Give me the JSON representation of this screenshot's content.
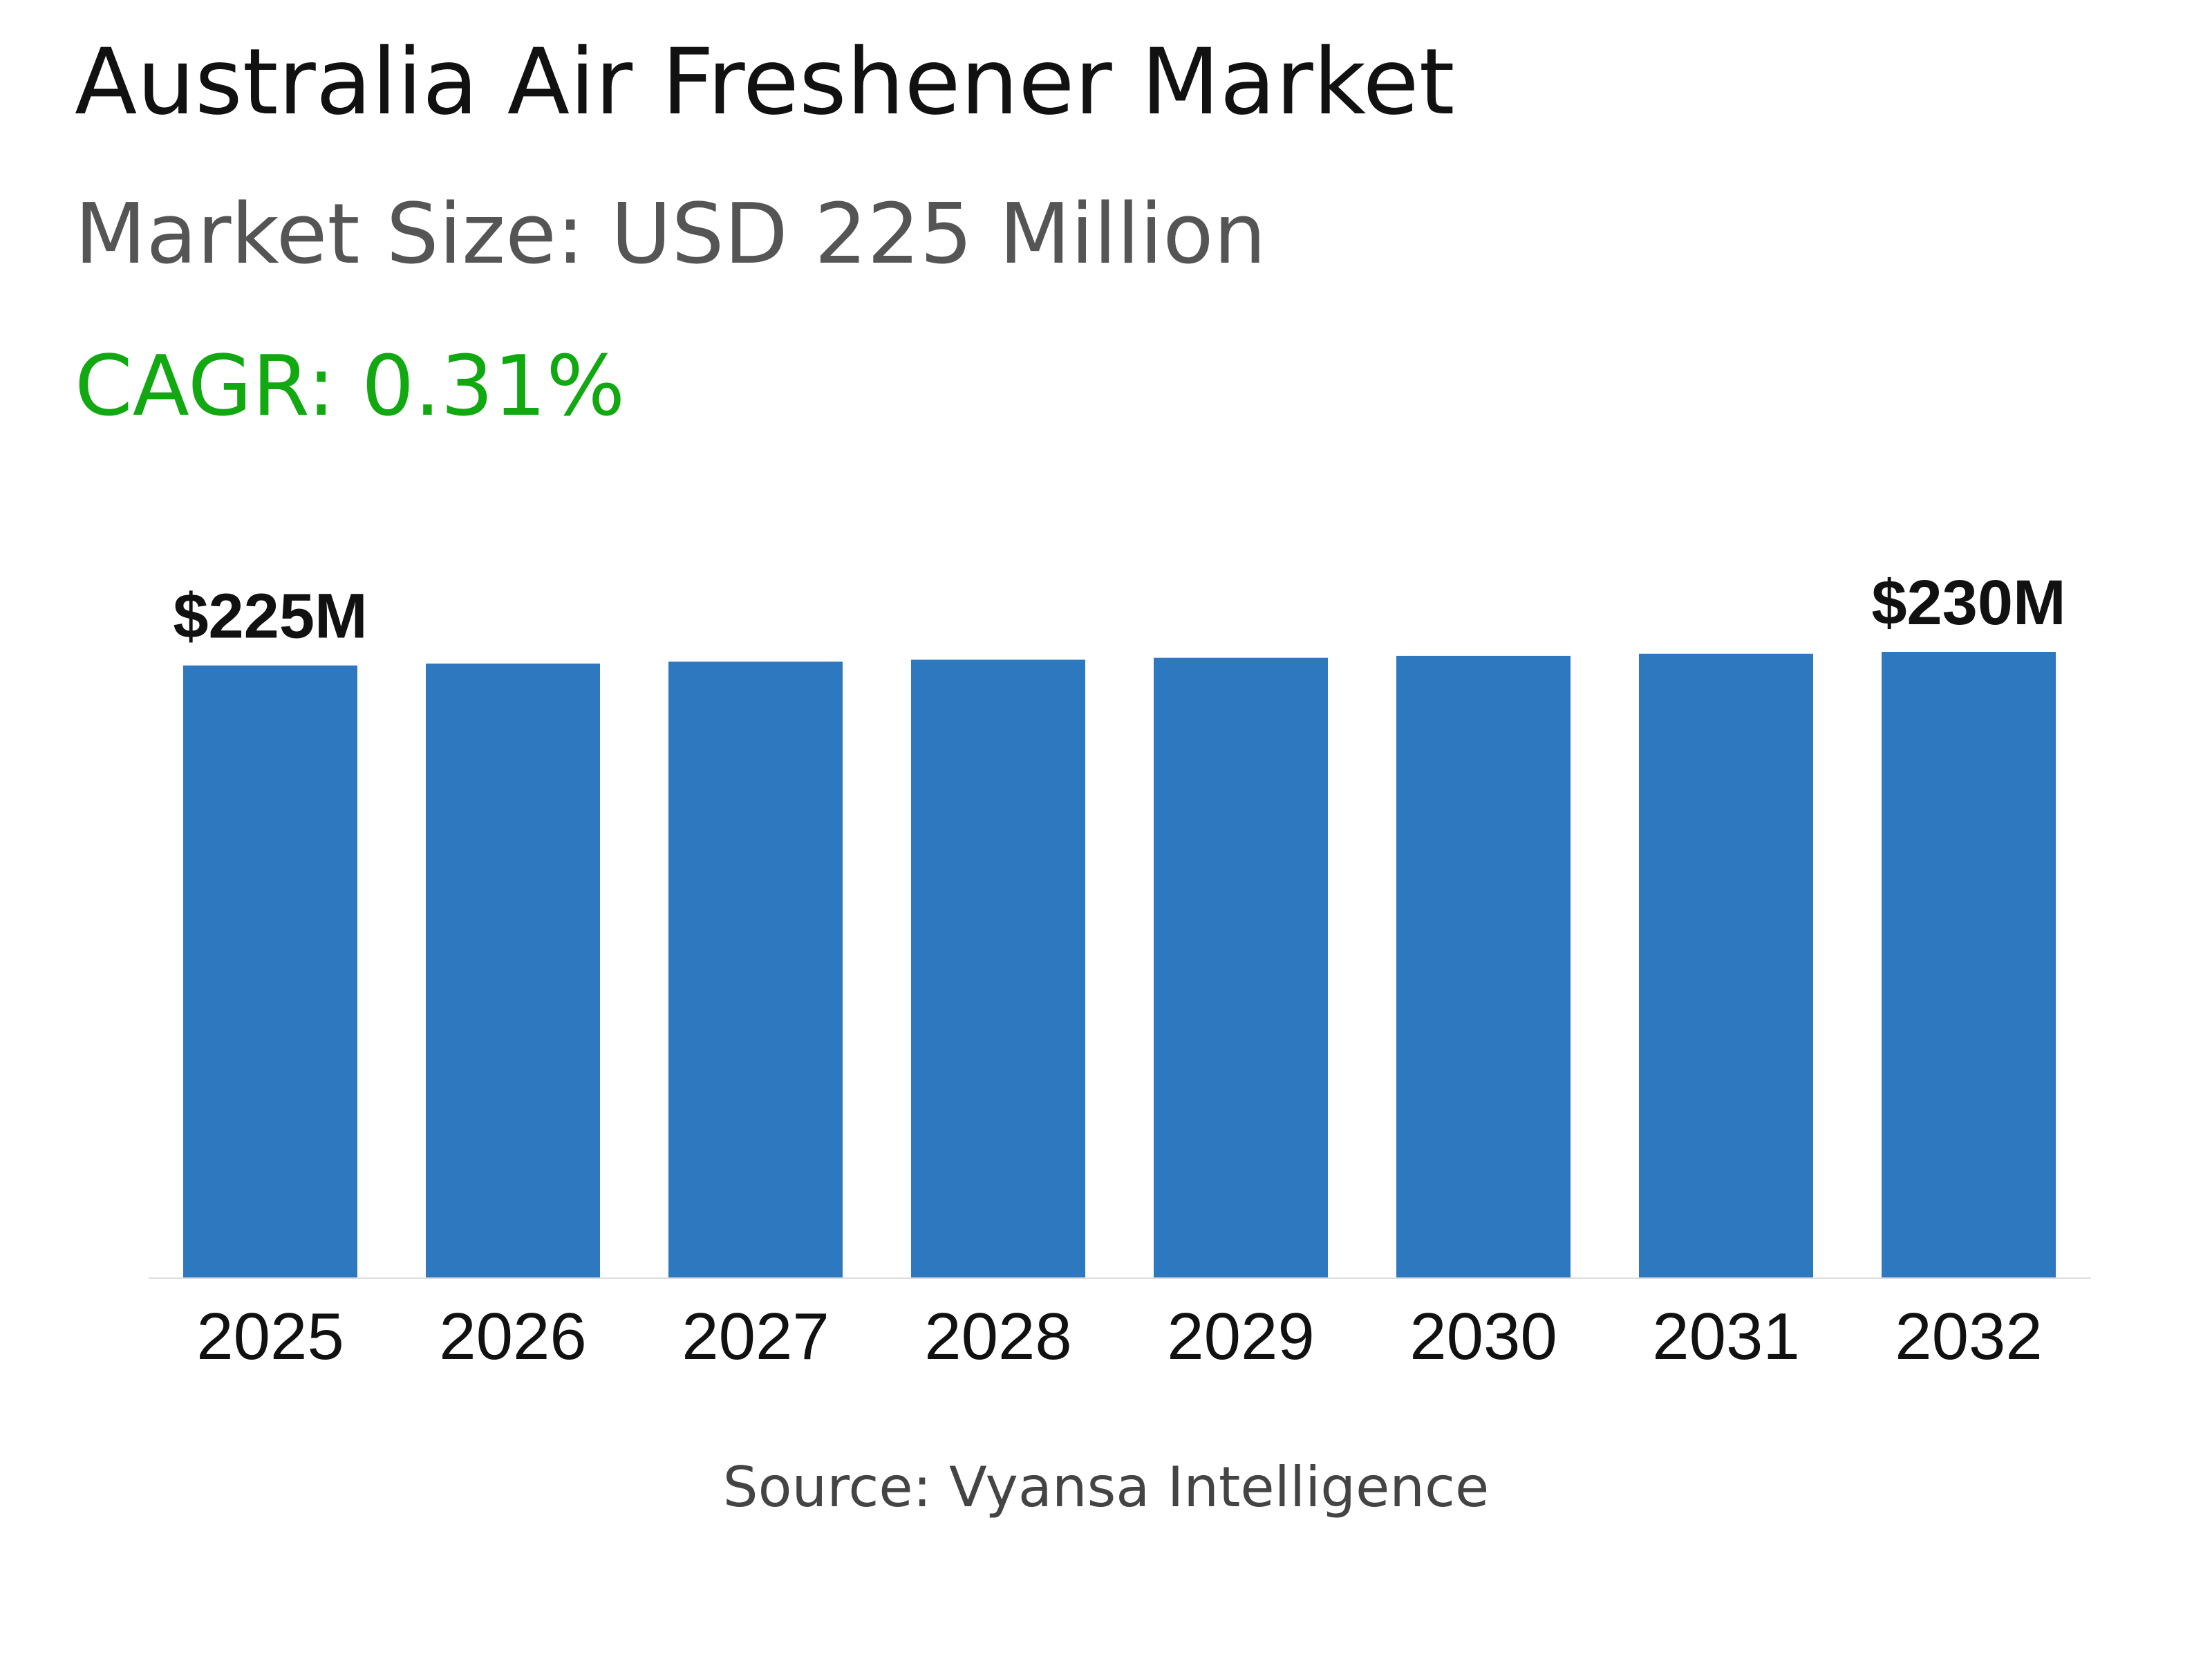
{
  "header": {
    "title": "Australia Air Freshener Market",
    "market_size": "Market Size: USD 225 Million",
    "cagr": "CAGR: 0.31%"
  },
  "footer": {
    "source": "Source: Vyansa Intelligence"
  },
  "colors": {
    "bar": "#2E78C0",
    "cagr": "#12A812",
    "axis": "#dddddd",
    "text": "#111111"
  },
  "chart_data": {
    "type": "bar",
    "categories": [
      "2025",
      "2026",
      "2027",
      "2028",
      "2029",
      "2030",
      "2031",
      "2032"
    ],
    "values": [
      225,
      225.7,
      226.4,
      227.1,
      227.8,
      228.5,
      229.3,
      230
    ],
    "data_labels": [
      "$225M",
      "",
      "",
      "",
      "",
      "",
      "",
      "$230M"
    ],
    "ylim": [
      0,
      230
    ],
    "grid": false,
    "legend": "none"
  }
}
